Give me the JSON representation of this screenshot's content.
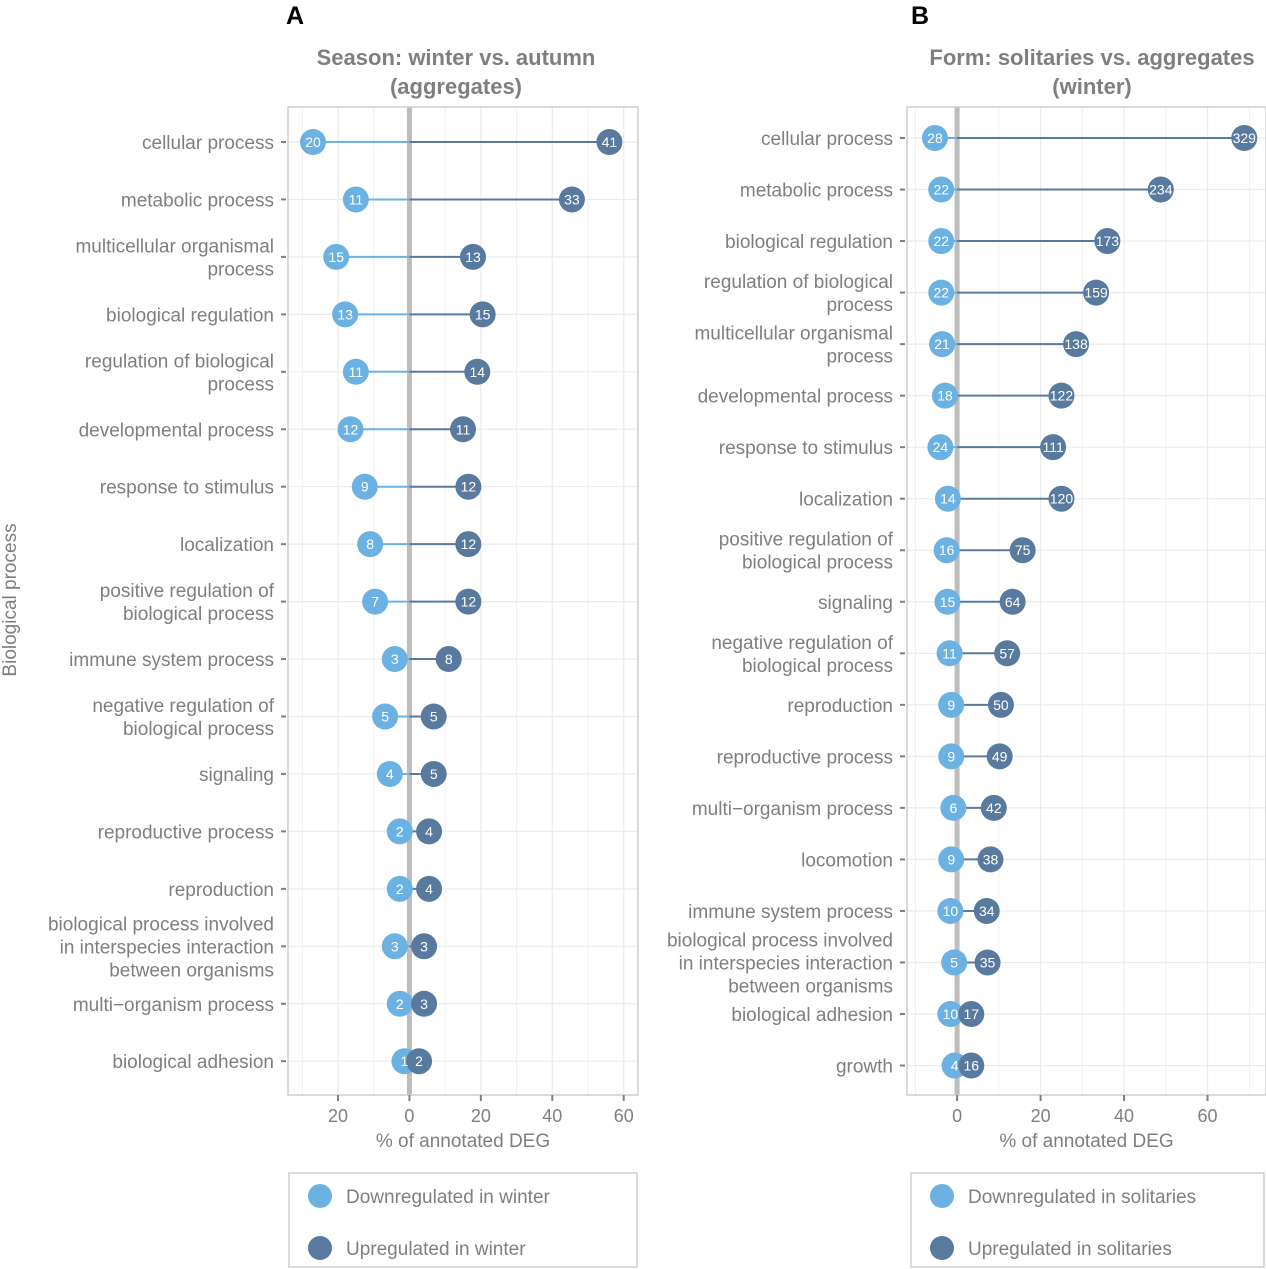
{
  "colors": {
    "down": "#6bb2e2",
    "up": "#587a9e",
    "text": "#7f7f7f",
    "grid": "#ebebeb",
    "zero": "#bdbdbd",
    "panel_border": "#cfcfcf",
    "panel_letter": "#000000"
  },
  "ylabel": "Biological process",
  "chart_data": [
    {
      "type": "dumbbell",
      "panel": "A",
      "title_line1": "Season: winter vs. autumn",
      "title_line2": "(aggregates)",
      "xlabel": "% of annotated DEG",
      "ylabel": "Biological process",
      "xlim": [
        -34,
        64
      ],
      "x_ticks": [
        -20,
        0,
        20,
        40,
        60
      ],
      "x_tick_labels": [
        "20",
        "0",
        "20",
        "40",
        "60"
      ],
      "legend": {
        "position": "bottom",
        "down_label": "Downregulated in winter",
        "up_label": "Upregulated in winter"
      },
      "categories": [
        {
          "label": [
            "cellular process"
          ],
          "down_pct": 27.0,
          "up_pct": 56.0,
          "down_count": 20,
          "up_count": 41
        },
        {
          "label": [
            "metabolic process"
          ],
          "down_pct": 15.0,
          "up_pct": 45.5,
          "down_count": 11,
          "up_count": 33
        },
        {
          "label": [
            "multicellular organismal",
            "process"
          ],
          "down_pct": 20.5,
          "up_pct": 17.8,
          "down_count": 15,
          "up_count": 13
        },
        {
          "label": [
            "biological regulation"
          ],
          "down_pct": 18.0,
          "up_pct": 20.5,
          "down_count": 13,
          "up_count": 15
        },
        {
          "label": [
            "regulation of biological",
            "process"
          ],
          "down_pct": 15.0,
          "up_pct": 19.0,
          "down_count": 11,
          "up_count": 14
        },
        {
          "label": [
            "developmental process"
          ],
          "down_pct": 16.5,
          "up_pct": 15.0,
          "down_count": 12,
          "up_count": 11
        },
        {
          "label": [
            "response to stimulus"
          ],
          "down_pct": 12.5,
          "up_pct": 16.5,
          "down_count": 9,
          "up_count": 12
        },
        {
          "label": [
            "localization"
          ],
          "down_pct": 11.0,
          "up_pct": 16.5,
          "down_count": 8,
          "up_count": 12
        },
        {
          "label": [
            "positive regulation of",
            "biological process"
          ],
          "down_pct": 9.6,
          "up_pct": 16.5,
          "down_count": 7,
          "up_count": 12
        },
        {
          "label": [
            "immune system process"
          ],
          "down_pct": 4.1,
          "up_pct": 11.0,
          "down_count": 3,
          "up_count": 8
        },
        {
          "label": [
            "negative regulation of",
            "biological process"
          ],
          "down_pct": 6.8,
          "up_pct": 6.8,
          "down_count": 5,
          "up_count": 5
        },
        {
          "label": [
            "signaling"
          ],
          "down_pct": 5.5,
          "up_pct": 6.8,
          "down_count": 4,
          "up_count": 5
        },
        {
          "label": [
            "reproductive process"
          ],
          "down_pct": 2.7,
          "up_pct": 5.5,
          "down_count": 2,
          "up_count": 4
        },
        {
          "label": [
            "reproduction"
          ],
          "down_pct": 2.7,
          "up_pct": 5.5,
          "down_count": 2,
          "up_count": 4
        },
        {
          "label": [
            "biological process involved",
            "in interspecies interaction",
            "between organisms"
          ],
          "down_pct": 4.1,
          "up_pct": 4.1,
          "down_count": 3,
          "up_count": 3
        },
        {
          "label": [
            "multi−organism process"
          ],
          "down_pct": 2.7,
          "up_pct": 4.1,
          "down_count": 2,
          "up_count": 3
        },
        {
          "label": [
            "biological adhesion"
          ],
          "down_pct": 1.4,
          "up_pct": 2.7,
          "down_count": 1,
          "up_count": 2
        }
      ]
    },
    {
      "type": "dumbbell",
      "panel": "B",
      "title_line1": "Form: solitaries vs. aggregates",
      "title_line2": "(winter)",
      "xlabel": "% of annotated DEG",
      "ylabel": "",
      "xlim": [
        -12,
        74
      ],
      "x_ticks": [
        0,
        20,
        40,
        60
      ],
      "x_tick_labels": [
        "0",
        "20",
        "40",
        "60"
      ],
      "legend": {
        "position": "bottom",
        "down_label": "Downregulated  in solitaries",
        "up_label": "Upregulated  in solitaries"
      },
      "categories": [
        {
          "label": [
            "cellular process"
          ],
          "down_pct": 5.3,
          "up_pct": 68.8,
          "down_count": 28,
          "up_count": 329
        },
        {
          "label": [
            "metabolic process"
          ],
          "down_pct": 3.8,
          "up_pct": 48.8,
          "down_count": 22,
          "up_count": 234
        },
        {
          "label": [
            "biological regulation"
          ],
          "down_pct": 3.8,
          "up_pct": 36.0,
          "down_count": 22,
          "up_count": 173
        },
        {
          "label": [
            "regulation of biological",
            "process"
          ],
          "down_pct": 3.8,
          "up_pct": 33.3,
          "down_count": 22,
          "up_count": 159
        },
        {
          "label": [
            "multicellular organismal",
            "process"
          ],
          "down_pct": 3.6,
          "up_pct": 28.5,
          "down_count": 21,
          "up_count": 138
        },
        {
          "label": [
            "developmental process"
          ],
          "down_pct": 2.9,
          "up_pct": 25.0,
          "down_count": 18,
          "up_count": 122
        },
        {
          "label": [
            "response to stimulus"
          ],
          "down_pct": 4.0,
          "up_pct": 23.0,
          "down_count": 24,
          "up_count": 111
        },
        {
          "label": [
            "localization"
          ],
          "down_pct": 2.2,
          "up_pct": 25.0,
          "down_count": 14,
          "up_count": 120
        },
        {
          "label": [
            "positive regulation of",
            "biological process"
          ],
          "down_pct": 2.5,
          "up_pct": 15.7,
          "down_count": 16,
          "up_count": 75
        },
        {
          "label": [
            "signaling"
          ],
          "down_pct": 2.3,
          "up_pct": 13.3,
          "down_count": 15,
          "up_count": 64
        },
        {
          "label": [
            "negative regulation of",
            "biological process"
          ],
          "down_pct": 1.8,
          "up_pct": 12.0,
          "down_count": 11,
          "up_count": 57
        },
        {
          "label": [
            "reproduction"
          ],
          "down_pct": 1.4,
          "up_pct": 10.5,
          "down_count": 9,
          "up_count": 50
        },
        {
          "label": [
            "reproductive process"
          ],
          "down_pct": 1.4,
          "up_pct": 10.2,
          "down_count": 9,
          "up_count": 49
        },
        {
          "label": [
            "multi−organism process"
          ],
          "down_pct": 0.9,
          "up_pct": 8.8,
          "down_count": 6,
          "up_count": 42
        },
        {
          "label": [
            "locomotion"
          ],
          "down_pct": 1.4,
          "up_pct": 8.0,
          "down_count": 9,
          "up_count": 38
        },
        {
          "label": [
            "immune system process"
          ],
          "down_pct": 1.6,
          "up_pct": 7.1,
          "down_count": 10,
          "up_count": 34
        },
        {
          "label": [
            "biological process involved",
            "in interspecies interaction",
            "between organisms"
          ],
          "down_pct": 0.7,
          "up_pct": 7.3,
          "down_count": 5,
          "up_count": 35
        },
        {
          "label": [
            "biological adhesion"
          ],
          "down_pct": 1.6,
          "up_pct": 3.4,
          "down_count": 10,
          "up_count": 17
        },
        {
          "label": [
            "growth"
          ],
          "down_pct": 0.6,
          "up_pct": 3.4,
          "down_count": 4,
          "up_count": 16
        }
      ]
    }
  ]
}
